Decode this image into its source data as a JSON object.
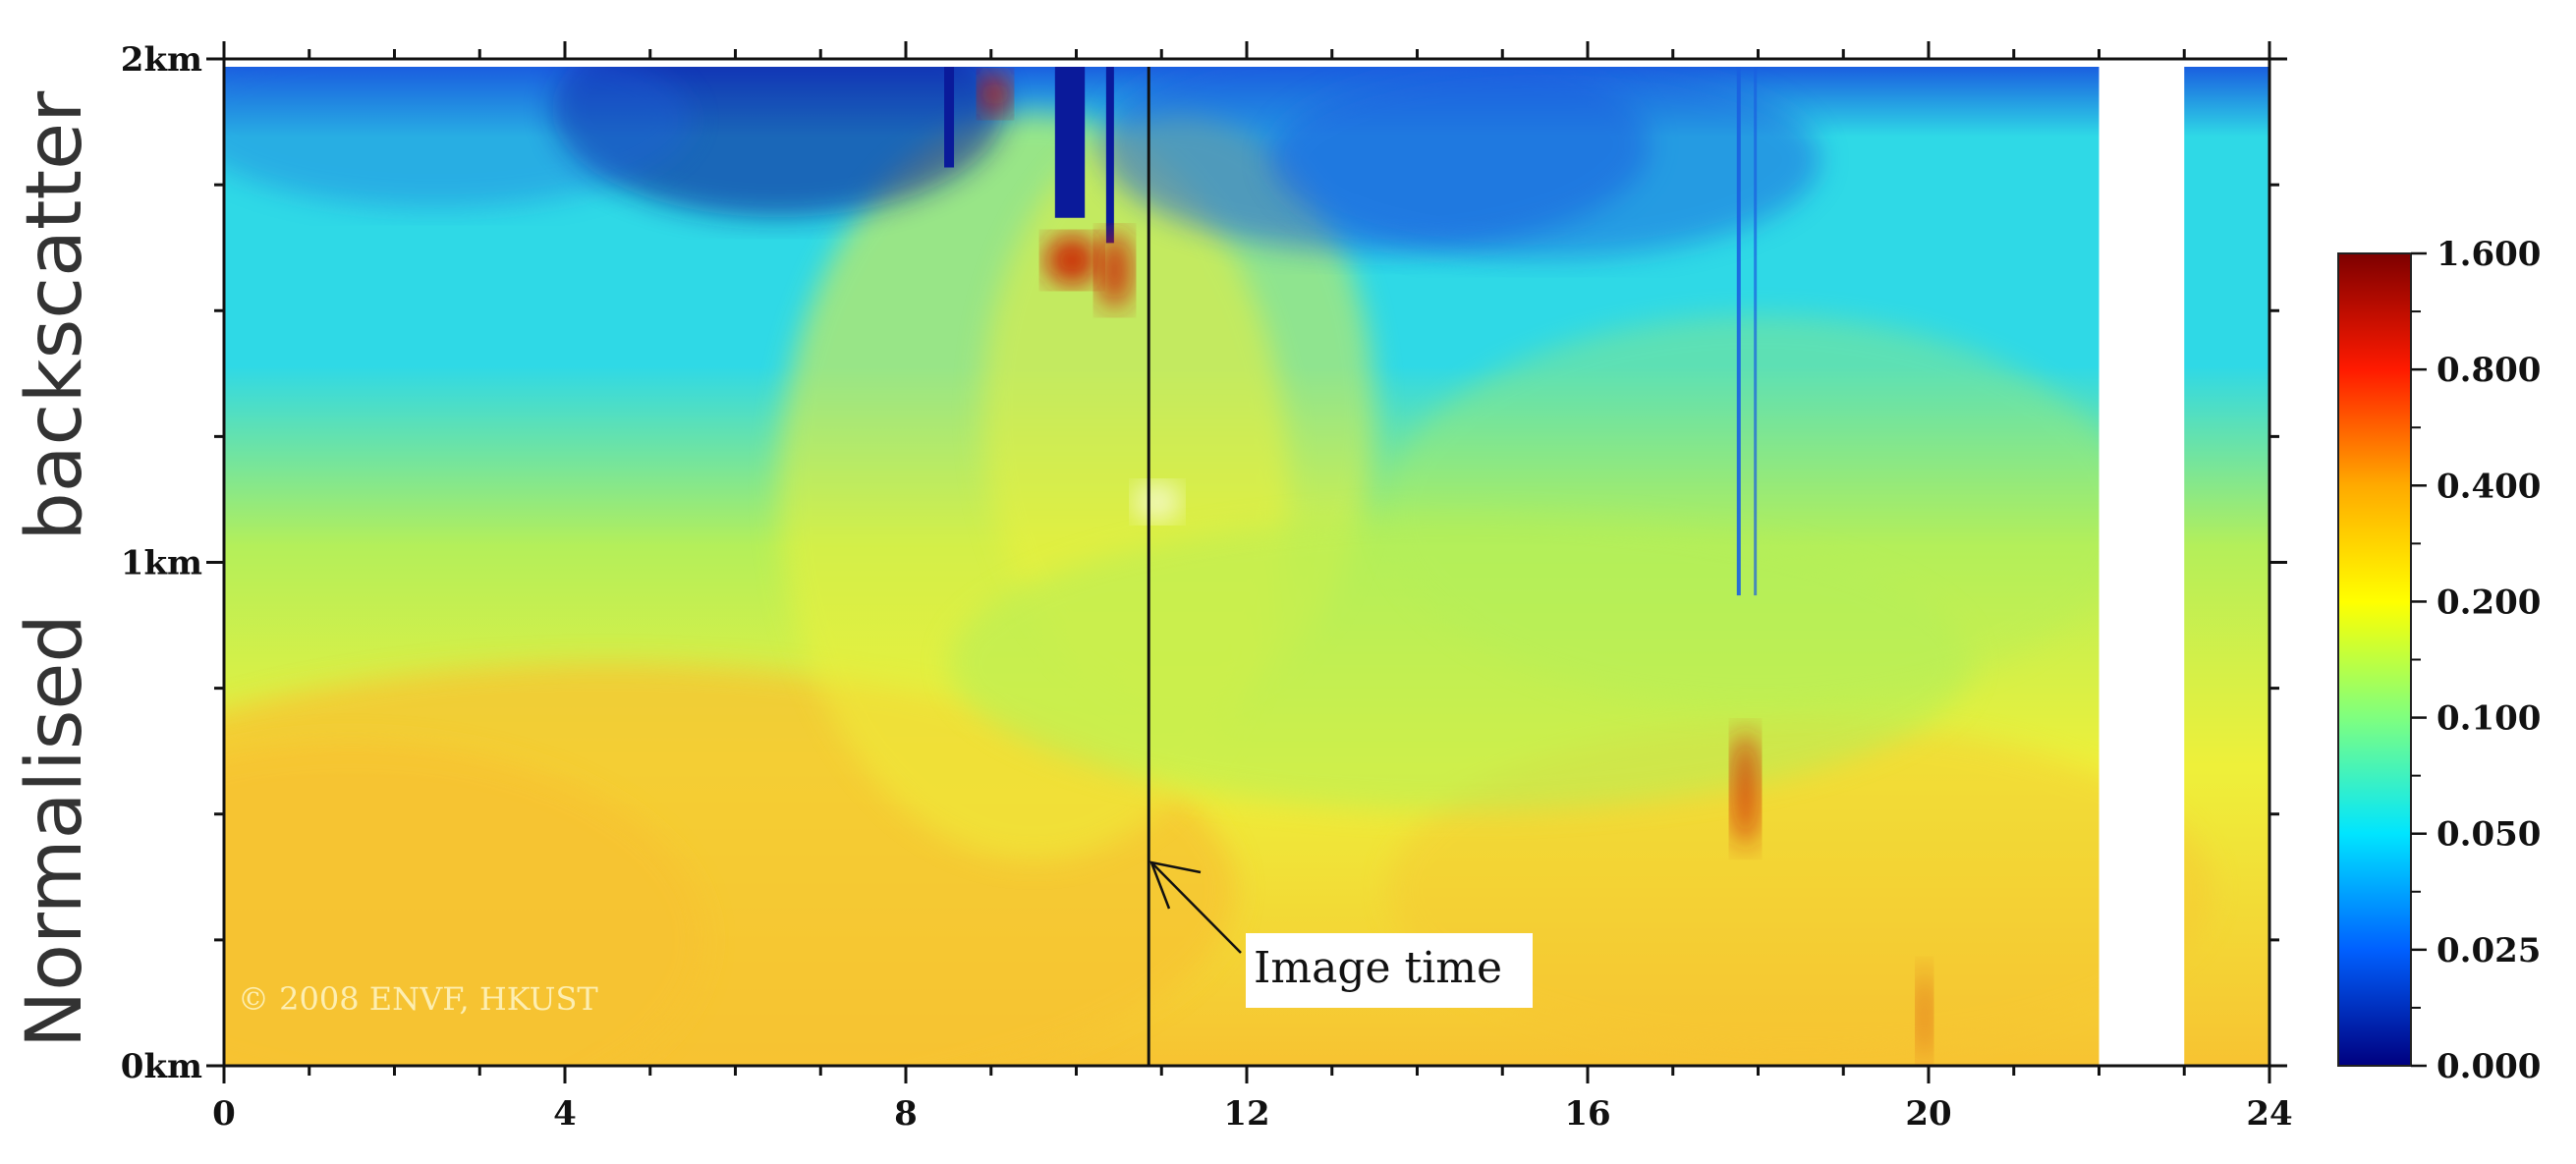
{
  "chart_data": {
    "type": "heatmap",
    "ylabel": "Normalised   backscatter",
    "xlim": [
      0,
      24
    ],
    "ylim": [
      0,
      2
    ],
    "x_ticks": [
      0,
      4,
      8,
      12,
      16,
      20,
      24
    ],
    "x_tick_labels": [
      "0",
      "4",
      "8",
      "12",
      "16",
      "20",
      "24"
    ],
    "y_ticks": [
      0,
      1,
      2
    ],
    "y_tick_labels": [
      "0km",
      "1km",
      "2km"
    ],
    "colorbar": {
      "ticks": [
        "1.600",
        "0.800",
        "0.400",
        "0.200",
        "0.100",
        "0.050",
        "0.025",
        "0.000"
      ],
      "colors": [
        "#7d0000",
        "#ff1a00",
        "#ffaa00",
        "#ffff00",
        "#7fff7f",
        "#00e5ff",
        "#0060ff",
        "#00007f"
      ]
    },
    "no_data_x_ranges": [
      [
        22,
        23
      ]
    ],
    "marker_time": 10.85,
    "annotation": "Image time",
    "copyright": "© 2008 ENVF, HKUST",
    "field_colors": {
      "low_orange": "#f7c332",
      "yellow": "#eef03a",
      "green": "#b4ef5a",
      "cyan": "#2fd9e6",
      "blue": "#1a5fe0",
      "navy": "#0a1a9a",
      "red": "#cc1a00"
    }
  }
}
